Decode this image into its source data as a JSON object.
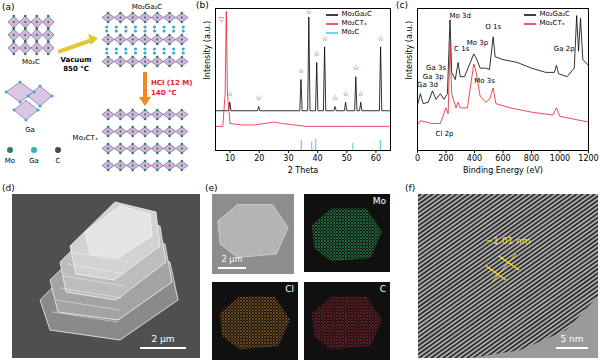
{
  "schematic": {
    "label": "(a)",
    "precursor": "Mo₂C",
    "metal": "Ga",
    "step1": [
      "Vacuum",
      "850 °C"
    ],
    "max_phase": "Mo₂Ga₂C",
    "step2": [
      "HCl (12 M)",
      "140 °C"
    ],
    "mxene": "Mo₂CTₓ",
    "atoms": [
      {
        "name": "Mo",
        "color": "#2e7d6b"
      },
      {
        "name": "Ga",
        "color": "#3fa7c9"
      },
      {
        "name": "C",
        "color": "#4a4a4a"
      }
    ]
  },
  "chart_data": [
    {
      "type": "line",
      "panel_label": "(b)",
      "x_label": "2 Theta",
      "y_label": "Intensity (a.u.)",
      "xlim": [
        5,
        65
      ],
      "xticks": [
        10,
        20,
        30,
        40,
        50,
        60
      ],
      "ylim": [
        0,
        100
      ],
      "tick_labels": "x",
      "legend": "upper right",
      "series": [
        {
          "name": "Mo₂Ga₂C",
          "color": "#000000",
          "type": "line",
          "x": [
            5,
            9.5,
            9.9,
            10.3,
            19.4,
            19.8,
            20.2,
            33.9,
            34.3,
            34.7,
            36.6,
            37.0,
            37.4,
            39.3,
            39.7,
            40.1,
            42.0,
            42.4,
            42.8,
            45.6,
            46.0,
            46.4,
            49.2,
            49.6,
            50.0,
            52.7,
            53.1,
            53.5,
            54.4,
            54.8,
            55.2,
            61.2,
            61.6,
            62.0,
            65
          ],
          "values": [
            28,
            28,
            34,
            28,
            28,
            31,
            28,
            28,
            50,
            28,
            28,
            94,
            28,
            28,
            62,
            28,
            28,
            73,
            28,
            28,
            31,
            28,
            28,
            34,
            28,
            28,
            52,
            28,
            28,
            34,
            28,
            28,
            73,
            28,
            28
          ]
        },
        {
          "name": "Mo₂CTₓ",
          "color": "#e8202a",
          "type": "line",
          "x": [
            5,
            7.5,
            8.3,
            8.7,
            9.1,
            10,
            14,
            18,
            22,
            25,
            28,
            32,
            36,
            40,
            50,
            65
          ],
          "values": [
            17,
            17,
            40,
            98,
            40,
            19,
            18,
            18,
            19,
            20,
            19,
            18,
            17,
            17,
            17,
            17
          ]
        },
        {
          "name": "Mo₂C",
          "color": "#49c5e0",
          "type": "stick",
          "x": [
            34.4,
            38.0,
            39.4,
            52.1,
            61.5
          ],
          "values": [
            7,
            6,
            8,
            5,
            7
          ]
        }
      ],
      "annotations": [
        {
          "text": "▽",
          "x": 7.0,
          "y": 92,
          "color": "#e8202a"
        },
        {
          "text": "☆",
          "x": 9.9,
          "y": 40,
          "color": "#000000"
        },
        {
          "text": "☆",
          "x": 19.8,
          "y": 37,
          "color": "#000000"
        },
        {
          "text": "☆",
          "x": 34.3,
          "y": 56,
          "color": "#000000"
        },
        {
          "text": "☆",
          "x": 37.0,
          "y": 98,
          "color": "#000000"
        },
        {
          "text": "☆",
          "x": 39.7,
          "y": 68,
          "color": "#000000"
        },
        {
          "text": "☆",
          "x": 42.4,
          "y": 79,
          "color": "#000000"
        },
        {
          "text": "☆",
          "x": 46.0,
          "y": 37,
          "color": "#000000"
        },
        {
          "text": "☆",
          "x": 49.6,
          "y": 40,
          "color": "#000000"
        },
        {
          "text": "☆",
          "x": 53.1,
          "y": 58,
          "color": "#000000"
        },
        {
          "text": "☆",
          "x": 54.8,
          "y": 40,
          "color": "#000000"
        },
        {
          "text": "☆",
          "x": 61.6,
          "y": 79,
          "color": "#000000"
        }
      ]
    },
    {
      "type": "line",
      "panel_label": "(c)",
      "x_label": "Binding Energy (eV)",
      "y_label": "Intensity (a.u.)",
      "xlim": [
        0,
        1200
      ],
      "xticks": [
        0,
        200,
        400,
        600,
        800,
        1000,
        1200
      ],
      "ylim": [
        0,
        100
      ],
      "tick_labels": "x",
      "legend": "upper right",
      "series": [
        {
          "name": "Mo₂Ga₂C",
          "color": "#000000",
          "type": "line",
          "x": [
            0,
            20,
            40,
            75,
            105,
            130,
            160,
            185,
            210,
            228,
            240,
            265,
            285,
            300,
            330,
            395,
            412,
            440,
            480,
            505,
            531,
            545,
            600,
            700,
            800,
            900,
            960,
            975,
            990,
            1050,
            1100,
            1117,
            1130,
            1144,
            1160,
            1200
          ],
          "values": [
            32,
            40,
            33,
            34,
            42,
            36,
            40,
            36,
            40,
            92,
            55,
            50,
            62,
            52,
            52,
            68,
            65,
            58,
            58,
            57,
            80,
            66,
            64,
            62,
            58,
            55,
            55,
            60,
            54,
            52,
            58,
            95,
            70,
            93,
            64,
            60
          ]
        },
        {
          "name": "Mo₂CTₓ",
          "color": "#e8202a",
          "type": "line",
          "x": [
            0,
            20,
            100,
            160,
            199,
            215,
            229,
            240,
            270,
            285,
            300,
            350,
            395,
            412,
            440,
            480,
            505,
            531,
            550,
            650,
            800,
            950,
            975,
            1000,
            1100,
            1200
          ],
          "values": [
            18,
            21,
            19,
            19,
            30,
            26,
            76,
            40,
            30,
            34,
            30,
            30,
            61,
            55,
            38,
            34,
            36,
            44,
            33,
            30,
            27,
            25,
            30,
            24,
            22,
            20
          ]
        }
      ],
      "annotations": [
        {
          "text": "Ga 3d",
          "x": 70,
          "y": 46,
          "color": "#000000"
        },
        {
          "text": "Ga 3p",
          "x": 110,
          "y": 52,
          "color": "#000000"
        },
        {
          "text": "Ga 3s",
          "x": 130,
          "y": 58,
          "color": "#000000"
        },
        {
          "text": "Cl 2p",
          "x": 190,
          "y": 12,
          "color": "#000000"
        },
        {
          "text": "C 1s",
          "x": 310,
          "y": 72,
          "color": "#000000"
        },
        {
          "text": "Mo 3d",
          "x": 300,
          "y": 95,
          "color": "#000000"
        },
        {
          "text": "Mo 3p",
          "x": 420,
          "y": 76,
          "color": "#000000"
        },
        {
          "text": "O 1s",
          "x": 531,
          "y": 87,
          "color": "#000000"
        },
        {
          "text": "Mo 3s",
          "x": 470,
          "y": 49,
          "color": "#000000"
        },
        {
          "text": "Ga 2p",
          "x": 1030,
          "y": 72,
          "color": "#000000"
        }
      ]
    }
  ],
  "sem": {
    "label": "(d)",
    "scale_bar": "2 μm"
  },
  "eds": {
    "label": "(e)",
    "scale_bar": "2 μm",
    "maps": [
      {
        "name": "Mo",
        "color": "#2fd06a"
      },
      {
        "name": "Cl",
        "color": "#d98a2b"
      },
      {
        "name": "C",
        "color": "#c0283a"
      }
    ]
  },
  "tem": {
    "label": "(f)",
    "d_spacing": "~1.01 nm",
    "scale_bar": "5 nm"
  }
}
